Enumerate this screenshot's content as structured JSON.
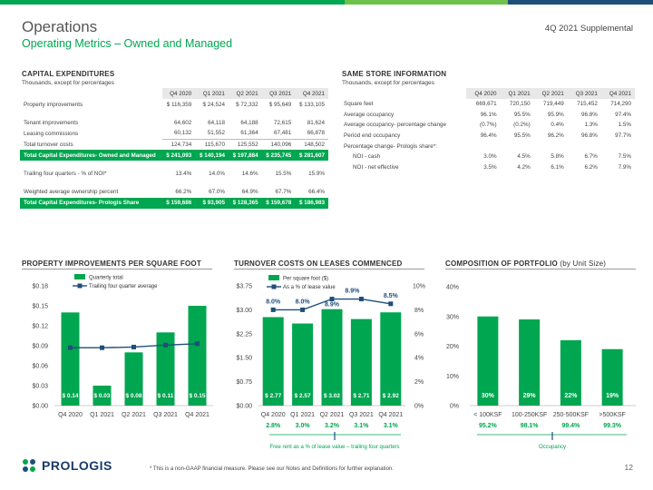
{
  "header": {
    "title": "Operations",
    "subtitle": "Operating Metrics – Owned and Managed",
    "supplemental": "4Q 2021 Supplemental",
    "bar_colors": [
      "#00A650",
      "#00A650",
      "#6cc24a",
      "#1f4e79"
    ]
  },
  "capex": {
    "heading": "CAPITAL EXPENDITURES",
    "note": "Thousands, except for percentages",
    "columns": [
      "Q4 2020",
      "Q1 2021",
      "Q2 2021",
      "Q3 2021",
      "Q4 2021"
    ],
    "rows": [
      {
        "label": "Property improvements",
        "cells": [
          "$   116,359",
          "$   24,524",
          "$   72,332",
          "$   95,649",
          "$  133,105"
        ],
        "style": "normal"
      },
      {
        "label": "",
        "cells": [
          "",
          "",
          "",
          "",
          ""
        ],
        "style": "gap"
      },
      {
        "label": "Tenant improvements",
        "cells": [
          "64,602",
          "64,118",
          "64,188",
          "72,615",
          "81,624"
        ],
        "style": "normal"
      },
      {
        "label": "Leasing commissions",
        "cells": [
          "60,132",
          "51,552",
          "61,364",
          "67,481",
          "66,878"
        ],
        "style": "normal"
      },
      {
        "label": "Total turnover costs",
        "cells": [
          "124,734",
          "115,670",
          "125,552",
          "140,096",
          "148,502"
        ],
        "style": "sep"
      },
      {
        "label": "Total Capital Expenditures- Owned and Managed",
        "cells": [
          "$   241,093",
          "$   140,194",
          "$   197,884",
          "$   235,745",
          "$   281,607"
        ],
        "style": "green"
      },
      {
        "label": "",
        "cells": [
          "",
          "",
          "",
          "",
          ""
        ],
        "style": "gap"
      },
      {
        "label": "Trailing four quarters - % of NOI*",
        "cells": [
          "13.4%",
          "14.0%",
          "14.6%",
          "15.5%",
          "15.9%"
        ],
        "style": "normal"
      },
      {
        "label": "",
        "cells": [
          "",
          "",
          "",
          "",
          ""
        ],
        "style": "gap"
      },
      {
        "label": "Weighted average ownership percent",
        "cells": [
          "66.2%",
          "67.0%",
          "64.9%",
          "67.7%",
          "66.4%"
        ],
        "style": "normal"
      },
      {
        "label": "Total Capital Expenditures- Prologis Share",
        "cells": [
          "$   159,686",
          "$   93,905",
          "$   128,365",
          "$   159,678",
          "$   186,983"
        ],
        "style": "green"
      }
    ]
  },
  "samestore": {
    "heading": "SAME STORE INFORMATION",
    "note": "Thousands, except for percentages",
    "columns": [
      "Q4 2020",
      "Q1 2021",
      "Q2 2021",
      "Q3 2021",
      "Q4 2021"
    ],
    "rows": [
      {
        "label": "Square feet",
        "cells": [
          "669,671",
          "720,150",
          "719,449",
          "715,452",
          "714,290"
        ],
        "indent": false
      },
      {
        "label": "Average occupancy",
        "cells": [
          "96.1%",
          "95.5%",
          "95.9%",
          "96.8%",
          "97.4%"
        ],
        "indent": false
      },
      {
        "label": "Average occupancy- percentage change",
        "cells": [
          "(0.7%)",
          "(0.2%)",
          "0.4%",
          "1.3%",
          "1.5%"
        ],
        "indent": false
      },
      {
        "label": "Period end occupancy",
        "cells": [
          "96.4%",
          "95.5%",
          "96.2%",
          "96.8%",
          "97.7%"
        ],
        "indent": false
      },
      {
        "label": "Percentage change- Prologis share*:",
        "cells": [
          "",
          "",
          "",
          "",
          ""
        ],
        "indent": false
      },
      {
        "label": "NOI - cash",
        "cells": [
          "3.0%",
          "4.5%",
          "5.8%",
          "6.7%",
          "7.5%"
        ],
        "indent": true
      },
      {
        "label": "NOI - net effective",
        "cells": [
          "3.5%",
          "4.2%",
          "6.1%",
          "6.2%",
          "7.9%"
        ],
        "indent": true
      }
    ]
  },
  "charts": {
    "property": {
      "heading": "PROPERTY IMPROVEMENTS PER SQUARE FOOT",
      "legend": [
        "Quarterly total",
        "Trailing four quarter average"
      ],
      "yticks": [
        "$0.18",
        "$0.15",
        "$0.12",
        "$0.09",
        "$0.06",
        "$0.03",
        "$0.00"
      ],
      "xticks": [
        "Q4 2020",
        "Q1 2021",
        "Q2 2021",
        "Q3 2021",
        "Q4 2021"
      ]
    },
    "turnover": {
      "heading": "TURNOVER COSTS ON LEASES COMMENCED",
      "legend": [
        "Per square foot ($)",
        "As a % of lease value"
      ],
      "yticks_left": [
        "$3.75",
        "$3.00",
        "$2.25",
        "$1.50",
        "$0.75",
        "$0.00"
      ],
      "yticks_right": [
        "10%",
        "8%",
        "6%",
        "4%",
        "2%",
        "0%"
      ],
      "xticks": [
        "Q4 2020",
        "Q1 2021",
        "Q2 2021",
        "Q3 2021",
        "Q4 2021"
      ],
      "free_rent": [
        "2.8%",
        "3.0%",
        "3.2%",
        "3.1%",
        "3.1%"
      ],
      "free_rent_caption": "Free rent as a % of lease value – trailing four quarters"
    },
    "composition": {
      "heading": "COMPOSITION OF PORTFOLIO",
      "heading_suffix": "(by Unit Size)",
      "yticks": [
        "40%",
        "30%",
        "20%",
        "10%",
        "0%"
      ],
      "xticks": [
        "< 100KSF",
        "100-250KSF",
        "250-500KSF",
        ">500KSF"
      ],
      "occupancy": [
        "95.2%",
        "98.1%",
        "99.4%",
        "99.3%"
      ],
      "occupancy_caption": "Occupancy"
    }
  },
  "chart_data": [
    {
      "type": "bar",
      "categories": [
        "Q4 2020",
        "Q1 2021",
        "Q2 2021",
        "Q3 2021",
        "Q4 2021"
      ],
      "series": [
        {
          "name": "Quarterly total",
          "values": [
            0.14,
            0.03,
            0.08,
            0.11,
            0.15
          ],
          "labels": [
            "$ 0.14",
            "$ 0.03",
            "$ 0.08",
            "$ 0.11",
            "$ 0.15"
          ]
        },
        {
          "name": "Trailing four quarter average",
          "values": [
            0.087,
            0.087,
            0.088,
            0.091,
            0.093
          ],
          "type": "line"
        }
      ],
      "ylim": [
        0,
        0.18
      ],
      "bar_color": "#00A650",
      "line_color": "#1f4e79"
    },
    {
      "type": "bar",
      "categories": [
        "Q4 2020",
        "Q1 2021",
        "Q2 2021",
        "Q3 2021",
        "Q4 2021"
      ],
      "series": [
        {
          "name": "Per square foot ($)",
          "values": [
            2.77,
            2.57,
            3.02,
            2.71,
            2.92
          ],
          "labels": [
            "$ 2.77",
            "$ 2.57",
            "$ 3.02",
            "$ 2.71",
            "$ 2.92"
          ]
        },
        {
          "name": "As a % of lease value",
          "values": [
            8.0,
            8.0,
            8.9,
            8.9,
            8.5
          ],
          "labels": [
            "8.0%",
            "8.0%",
            "8.9%",
            "8.9%",
            "8.5%"
          ],
          "type": "line",
          "axis": "right"
        }
      ],
      "ylim": [
        0,
        3.75
      ],
      "ylim_right": [
        0,
        10
      ],
      "bar_color": "#00A650",
      "line_color": "#1f4e79"
    },
    {
      "type": "bar",
      "categories": [
        "< 100KSF",
        "100-250KSF",
        "250-500KSF",
        ">500KSF"
      ],
      "series": [
        {
          "name": "",
          "values": [
            30,
            29,
            22,
            19
          ],
          "labels": [
            "30%",
            "29%",
            "22%",
            "19%"
          ]
        }
      ],
      "ylim": [
        0,
        40
      ],
      "bar_color": "#00A650"
    }
  ],
  "footer": {
    "logo_text": "PROLOGIS",
    "footnote": "* This is a non-GAAP financial measure. Please see our Notes and Definitions for further explanation.",
    "page": "12"
  }
}
